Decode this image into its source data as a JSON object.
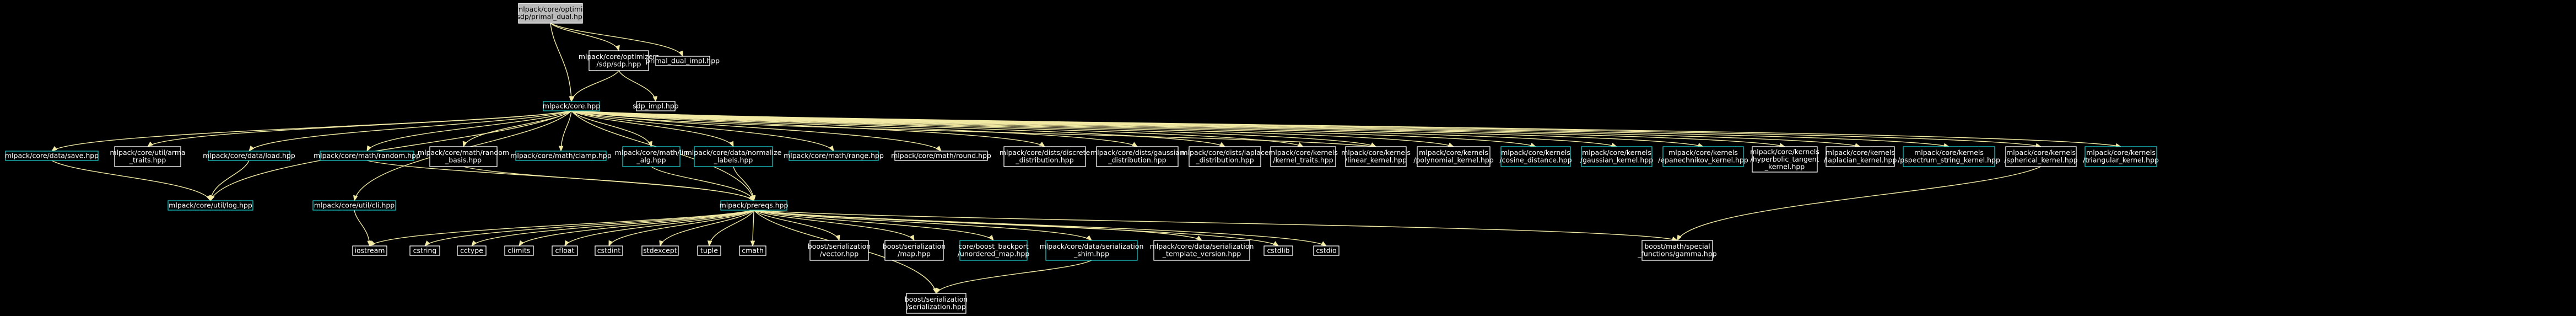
{
  "diagram": {
    "nodes": [
      {
        "id": "root",
        "lines": [
          "src/mlpack/core/optimizers",
          "/sdp/primal_dual.hpp"
        ],
        "style": "root"
      },
      {
        "id": "sdp",
        "lines": [
          "mlpack/core/optimizers",
          "/sdp/sdp.hpp"
        ],
        "style": "plain"
      },
      {
        "id": "pdimpl",
        "lines": [
          "primal_dual_impl.hpp"
        ],
        "style": "plain"
      },
      {
        "id": "core",
        "lines": [
          "mlpack/core.hpp"
        ],
        "style": "link"
      },
      {
        "id": "sdpimpl",
        "lines": [
          "sdp_impl.hpp"
        ],
        "style": "plain"
      },
      {
        "id": "save",
        "lines": [
          "mlpack/core/data/save.hpp"
        ],
        "style": "link"
      },
      {
        "id": "arma_traits",
        "lines": [
          "mlpack/core/util/arma",
          "_traits.hpp"
        ],
        "style": "plain"
      },
      {
        "id": "load",
        "lines": [
          "mlpack/core/data/load.hpp"
        ],
        "style": "link"
      },
      {
        "id": "random",
        "lines": [
          "mlpack/core/math/random.hpp"
        ],
        "style": "link"
      },
      {
        "id": "random_basis",
        "lines": [
          "mlpack/core/math/random",
          "_basis.hpp"
        ],
        "style": "plain"
      },
      {
        "id": "clamp",
        "lines": [
          "mlpack/core/math/clamp.hpp"
        ],
        "style": "link"
      },
      {
        "id": "lin_alg",
        "lines": [
          "mlpack/core/math/lin",
          "_alg.hpp"
        ],
        "style": "link"
      },
      {
        "id": "normalize",
        "lines": [
          "mlpack/core/data/normalize",
          "_labels.hpp"
        ],
        "style": "link"
      },
      {
        "id": "range",
        "lines": [
          "mlpack/core/math/range.hpp"
        ],
        "style": "link"
      },
      {
        "id": "round",
        "lines": [
          "mlpack/core/math/round.hpp"
        ],
        "style": "plain"
      },
      {
        "id": "discrete",
        "lines": [
          "mlpack/core/dists/discrete",
          "_distribution.hpp"
        ],
        "style": "plain"
      },
      {
        "id": "gaussian_dist",
        "lines": [
          "mlpack/core/dists/gaussian",
          "_distribution.hpp"
        ],
        "style": "plain"
      },
      {
        "id": "laplace_dist",
        "lines": [
          "mlpack/core/dists/laplace",
          "_distribution.hpp"
        ],
        "style": "plain"
      },
      {
        "id": "kernel_traits",
        "lines": [
          "mlpack/core/kernels",
          "/kernel_traits.hpp"
        ],
        "style": "plain"
      },
      {
        "id": "linear_kernel",
        "lines": [
          "mlpack/core/kernels",
          "/linear_kernel.hpp"
        ],
        "style": "plain"
      },
      {
        "id": "polynomial_kernel",
        "lines": [
          "mlpack/core/kernels",
          "/polynomial_kernel.hpp"
        ],
        "style": "plain"
      },
      {
        "id": "cosine",
        "lines": [
          "mlpack/core/kernels",
          "/cosine_distance.hpp"
        ],
        "style": "link"
      },
      {
        "id": "gaussian_kernel",
        "lines": [
          "mlpack/core/kernels",
          "/gaussian_kernel.hpp"
        ],
        "style": "link"
      },
      {
        "id": "epanechnikov",
        "lines": [
          "mlpack/core/kernels",
          "/epanechnikov_kernel.hpp"
        ],
        "style": "link"
      },
      {
        "id": "hyperbolic",
        "lines": [
          "mlpack/core/kernels",
          "/hyperbolic_tangent",
          "_kernel.hpp"
        ],
        "style": "plain"
      },
      {
        "id": "laplacian",
        "lines": [
          "mlpack/core/kernels",
          "/laplacian_kernel.hpp"
        ],
        "style": "plain"
      },
      {
        "id": "pspectrum",
        "lines": [
          "mlpack/core/kernels",
          "/pspectrum_string_kernel.hpp"
        ],
        "style": "link"
      },
      {
        "id": "spherical",
        "lines": [
          "mlpack/core/kernels",
          "/spherical_kernel.hpp"
        ],
        "style": "plain"
      },
      {
        "id": "triangular",
        "lines": [
          "mlpack/core/kernels",
          "/triangular_kernel.hpp"
        ],
        "style": "link"
      },
      {
        "id": "log",
        "lines": [
          "mlpack/core/util/log.hpp"
        ],
        "style": "link"
      },
      {
        "id": "cli",
        "lines": [
          "mlpack/core/util/cli.hpp"
        ],
        "style": "link"
      },
      {
        "id": "prereqs",
        "lines": [
          "mlpack/prereqs.hpp"
        ],
        "style": "link"
      },
      {
        "id": "iostream",
        "lines": [
          "iostream"
        ],
        "style": "plain"
      },
      {
        "id": "cstring",
        "lines": [
          "cstring"
        ],
        "style": "plain"
      },
      {
        "id": "cctype",
        "lines": [
          "cctype"
        ],
        "style": "plain"
      },
      {
        "id": "climits",
        "lines": [
          "climits"
        ],
        "style": "plain"
      },
      {
        "id": "cfloat",
        "lines": [
          "cfloat"
        ],
        "style": "plain"
      },
      {
        "id": "cstdint",
        "lines": [
          "cstdint"
        ],
        "style": "plain"
      },
      {
        "id": "stdexcept",
        "lines": [
          "stdexcept"
        ],
        "style": "plain"
      },
      {
        "id": "tuple",
        "lines": [
          "tuple"
        ],
        "style": "plain"
      },
      {
        "id": "cmath",
        "lines": [
          "cmath"
        ],
        "style": "plain"
      },
      {
        "id": "bvector",
        "lines": [
          "boost/serialization",
          "/vector.hpp"
        ],
        "style": "plain"
      },
      {
        "id": "bmap",
        "lines": [
          "boost/serialization",
          "/map.hpp"
        ],
        "style": "plain"
      },
      {
        "id": "unordered",
        "lines": [
          "core/boost_backport",
          "/unordered_map.hpp"
        ],
        "style": "link"
      },
      {
        "id": "serialization_shim",
        "lines": [
          "mlpack/core/data/serialization",
          "_shim.hpp"
        ],
        "style": "link"
      },
      {
        "id": "template_version",
        "lines": [
          "mlpack/core/data/serialization",
          "_template_version.hpp"
        ],
        "style": "plain"
      },
      {
        "id": "cstdlib",
        "lines": [
          "cstdlib"
        ],
        "style": "plain"
      },
      {
        "id": "cstdio",
        "lines": [
          "cstdio"
        ],
        "style": "plain"
      },
      {
        "id": "gamma",
        "lines": [
          "boost/math/special",
          "_functions/gamma.hpp"
        ],
        "style": "plain"
      },
      {
        "id": "bserialization",
        "lines": [
          "boost/serialization",
          "/serialization.hpp"
        ],
        "style": "plain"
      }
    ],
    "edges": [
      [
        "root",
        "sdp"
      ],
      [
        "root",
        "pdimpl"
      ],
      [
        "root",
        "core"
      ],
      [
        "sdp",
        "core"
      ],
      [
        "sdp",
        "sdpimpl"
      ],
      [
        "core",
        "save"
      ],
      [
        "core",
        "arma_traits"
      ],
      [
        "core",
        "load"
      ],
      [
        "core",
        "random"
      ],
      [
        "core",
        "random_basis"
      ],
      [
        "core",
        "clamp"
      ],
      [
        "core",
        "lin_alg"
      ],
      [
        "core",
        "normalize"
      ],
      [
        "core",
        "range"
      ],
      [
        "core",
        "round"
      ],
      [
        "core",
        "discrete"
      ],
      [
        "core",
        "gaussian_dist"
      ],
      [
        "core",
        "laplace_dist"
      ],
      [
        "core",
        "kernel_traits"
      ],
      [
        "core",
        "linear_kernel"
      ],
      [
        "core",
        "polynomial_kernel"
      ],
      [
        "core",
        "cosine"
      ],
      [
        "core",
        "gaussian_kernel"
      ],
      [
        "core",
        "epanechnikov"
      ],
      [
        "core",
        "hyperbolic"
      ],
      [
        "core",
        "laplacian"
      ],
      [
        "core",
        "pspectrum"
      ],
      [
        "core",
        "spherical"
      ],
      [
        "core",
        "triangular"
      ],
      [
        "core",
        "log"
      ],
      [
        "core",
        "cli"
      ],
      [
        "core",
        "prereqs"
      ],
      [
        "save",
        "log"
      ],
      [
        "load",
        "log"
      ],
      [
        "random",
        "prereqs"
      ],
      [
        "random_basis",
        "prereqs"
      ],
      [
        "lin_alg",
        "prereqs"
      ],
      [
        "normalize",
        "prereqs"
      ],
      [
        "cli",
        "iostream"
      ],
      [
        "prereqs",
        "iostream"
      ],
      [
        "prereqs",
        "cstring"
      ],
      [
        "prereqs",
        "cctype"
      ],
      [
        "prereqs",
        "climits"
      ],
      [
        "prereqs",
        "cfloat"
      ],
      [
        "prereqs",
        "cstdint"
      ],
      [
        "prereqs",
        "stdexcept"
      ],
      [
        "prereqs",
        "tuple"
      ],
      [
        "prereqs",
        "cmath"
      ],
      [
        "prereqs",
        "bvector"
      ],
      [
        "prereqs",
        "bmap"
      ],
      [
        "prereqs",
        "unordered"
      ],
      [
        "prereqs",
        "serialization_shim"
      ],
      [
        "prereqs",
        "template_version"
      ],
      [
        "prereqs",
        "cstdlib"
      ],
      [
        "prereqs",
        "cstdio"
      ],
      [
        "prereqs",
        "gamma"
      ],
      [
        "prereqs",
        "bserialization"
      ],
      [
        "serialization_shim",
        "bserialization"
      ],
      [
        "linear_kernel",
        "core"
      ],
      [
        "spherical",
        "gamma"
      ]
    ]
  }
}
